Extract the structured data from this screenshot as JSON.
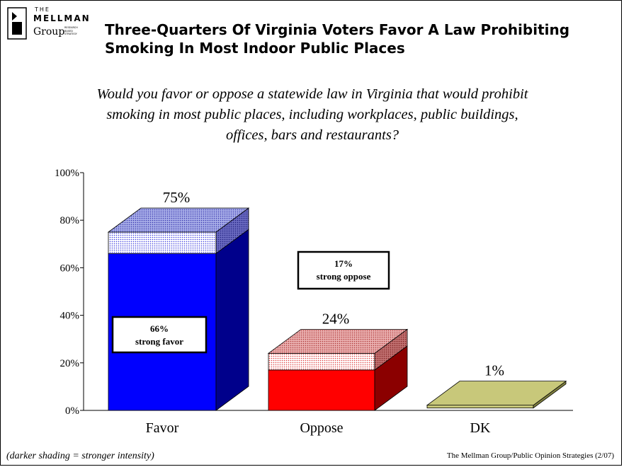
{
  "header": {
    "logo": {
      "the": "THE",
      "name": "MELLMAN",
      "group": "Group",
      "sub": [
        "RESEARCH",
        "BASED",
        "STRATEGY"
      ]
    },
    "title_line1": "Three-Quarters Of Virginia Voters Favor A Law Prohibiting",
    "title_line2": "Smoking In Most Indoor Public Places"
  },
  "question": {
    "line1": "Would you favor or oppose a statewide law in Virginia that would prohibit",
    "line2": "smoking in most public places, including workplaces, public buildings,",
    "line3": "offices, bars and restaurants?"
  },
  "footer": {
    "note": "(darker shading = stronger intensity)",
    "source": "The Mellman Group/Public Opinion Strategies (2/07)"
  },
  "chart_data": {
    "type": "bar",
    "categories": [
      "Favor",
      "Oppose",
      "DK"
    ],
    "values": [
      75,
      24,
      1
    ],
    "value_labels": [
      "75%",
      "24%",
      "1%"
    ],
    "strong": [
      66,
      17,
      0
    ],
    "strong_labels": [
      {
        "pct": "66%",
        "text": "strong favor"
      },
      {
        "pct": "17%",
        "text": "strong oppose"
      }
    ],
    "colors": {
      "favor": {
        "front": "#0000ff",
        "side": "#00008b",
        "top": "#7f86d8"
      },
      "oppose": {
        "front": "#ff0000",
        "side": "#8b0000",
        "top": "#d88a8a"
      },
      "dk": {
        "front": "#c8c87a",
        "side": "#808040",
        "top": "#c8c87a"
      }
    },
    "ylim": [
      0,
      100
    ],
    "yticks": [
      "0%",
      "20%",
      "40%",
      "60%",
      "80%",
      "100%"
    ],
    "grid": false
  }
}
